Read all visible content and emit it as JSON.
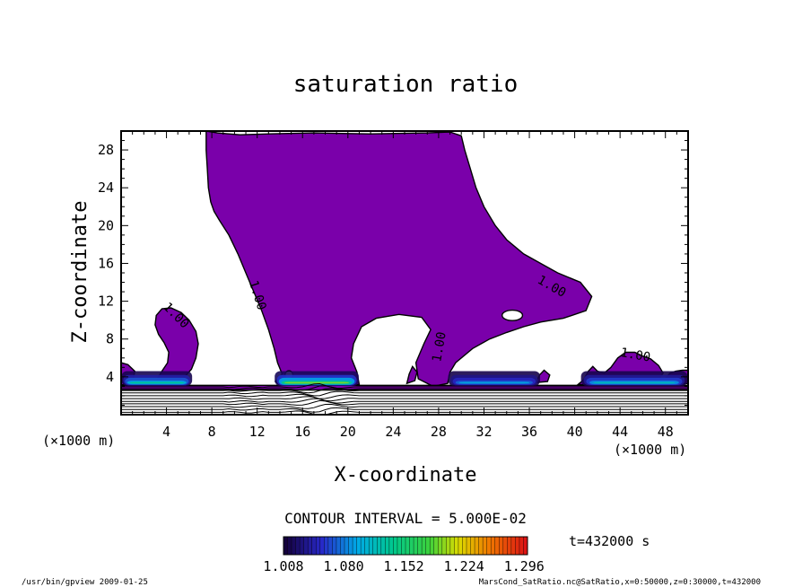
{
  "chart_data": {
    "type": "contour",
    "title": "saturation ratio",
    "xlabel": "X-coordinate",
    "ylabel": "Z-coordinate",
    "x_unit": "(×1000 m)",
    "y_unit": "(×1000 m)",
    "xlim": [
      0,
      50
    ],
    "ylim": [
      0,
      30
    ],
    "x_ticks": [
      4,
      8,
      12,
      16,
      20,
      24,
      28,
      32,
      36,
      40,
      44,
      48
    ],
    "y_ticks": [
      4,
      8,
      12,
      16,
      20,
      24,
      28
    ],
    "contour_label": "1.00",
    "contour_interval": "CONTOUR INTERVAL = 5.000E-02",
    "time_label": "t=432000 s",
    "colorbar": {
      "ticks": [
        "1.008",
        "1.080",
        "1.152",
        "1.224",
        "1.296"
      ],
      "min": 1.008,
      "max": 1.3
    },
    "fill_color": "#7a00aa",
    "footer_left": "/usr/bin/gpview  2009-01-25",
    "footer_right": "MarsCond_SatRatio.nc@SatRatio,x=0:50000,z=0:30000,t=432000",
    "regions": [
      {
        "name": "main-plume",
        "polygon": [
          [
            7.5,
            30
          ],
          [
            8.5,
            29.8
          ],
          [
            10.5,
            29.6
          ],
          [
            13,
            29.7
          ],
          [
            17,
            29.8
          ],
          [
            22,
            29.7
          ],
          [
            27,
            29.8
          ],
          [
            29,
            29.9
          ],
          [
            30,
            29.5
          ],
          [
            30.3,
            28
          ],
          [
            30.8,
            26
          ],
          [
            31.3,
            24
          ],
          [
            32,
            22
          ],
          [
            33,
            20
          ],
          [
            34,
            18.5
          ],
          [
            35.5,
            17
          ],
          [
            37,
            16
          ],
          [
            38.5,
            15
          ],
          [
            40.5,
            14
          ],
          [
            41.5,
            12.5
          ],
          [
            41,
            11
          ],
          [
            39,
            10.2
          ],
          [
            37,
            9.8
          ],
          [
            35.5,
            9.3
          ],
          [
            34,
            8.7
          ],
          [
            32.5,
            8
          ],
          [
            31,
            7
          ],
          [
            29.5,
            5.5
          ],
          [
            29,
            4.5
          ],
          [
            28.8,
            3.3
          ],
          [
            27.5,
            3
          ],
          [
            26.2,
            3.8
          ],
          [
            26,
            5.5
          ],
          [
            26.7,
            7.5
          ],
          [
            27.3,
            9
          ],
          [
            26.5,
            10.3
          ],
          [
            24.5,
            10.6
          ],
          [
            22.5,
            10.2
          ],
          [
            21.2,
            9.3
          ],
          [
            20.5,
            7.5
          ],
          [
            20.3,
            6
          ],
          [
            20.8,
            4.5
          ],
          [
            21,
            3.2
          ],
          [
            17.5,
            3
          ],
          [
            14,
            3.1
          ],
          [
            13.6,
            3.5
          ],
          [
            14.2,
            4.3
          ],
          [
            13.8,
            5.5
          ],
          [
            13.5,
            7
          ],
          [
            13,
            9
          ],
          [
            12.4,
            11
          ],
          [
            11.7,
            13
          ],
          [
            11,
            15
          ],
          [
            10.3,
            17
          ],
          [
            9.5,
            19
          ],
          [
            8.7,
            20.5
          ],
          [
            8.2,
            21.5
          ],
          [
            7.9,
            22.5
          ],
          [
            7.7,
            24
          ],
          [
            7.6,
            26
          ],
          [
            7.5,
            28
          ]
        ]
      },
      {
        "name": "left-blob",
        "polygon": [
          [
            3.3,
            2.9
          ],
          [
            4,
            3.2
          ],
          [
            4.8,
            3.6
          ],
          [
            5.6,
            4
          ],
          [
            6.2,
            4.8
          ],
          [
            6.6,
            6
          ],
          [
            6.8,
            7.5
          ],
          [
            6.6,
            8.8
          ],
          [
            6,
            10
          ],
          [
            5.3,
            10.8
          ],
          [
            4.4,
            11.3
          ],
          [
            3.6,
            11.2
          ],
          [
            3.1,
            10.5
          ],
          [
            3,
            9.5
          ],
          [
            3.3,
            8.5
          ],
          [
            3.8,
            7.6
          ],
          [
            4.2,
            6.6
          ],
          [
            4.1,
            5.5
          ],
          [
            3.6,
            4.6
          ],
          [
            3.2,
            3.8
          ]
        ]
      },
      {
        "name": "left-edge-blob",
        "polygon": [
          [
            0,
            5.5
          ],
          [
            0.6,
            5.3
          ],
          [
            1.2,
            4.6
          ],
          [
            1.1,
            3.9
          ],
          [
            0.5,
            3.3
          ],
          [
            0,
            3.1
          ]
        ]
      },
      {
        "name": "right-blob-1",
        "polygon": [
          [
            40.3,
            3.2
          ],
          [
            40.8,
            3.7
          ],
          [
            41.2,
            4.6
          ],
          [
            41.6,
            5.1
          ],
          [
            42,
            4.6
          ],
          [
            42.6,
            4.4
          ],
          [
            43.2,
            5
          ],
          [
            43.8,
            6
          ],
          [
            44.5,
            6.6
          ],
          [
            45.3,
            6.6
          ],
          [
            46,
            6.2
          ],
          [
            46.7,
            5.9
          ],
          [
            47.4,
            5.2
          ],
          [
            47.8,
            4.4
          ],
          [
            47.3,
            3.6
          ],
          [
            46,
            3.2
          ],
          [
            44,
            3.1
          ],
          [
            42,
            3.1
          ]
        ]
      },
      {
        "name": "right-blob-2",
        "polygon": [
          [
            47.8,
            3.5
          ],
          [
            48.4,
            4.4
          ],
          [
            48.9,
            4.6
          ],
          [
            49.5,
            4.7
          ],
          [
            50,
            4.7
          ],
          [
            50,
            3.3
          ],
          [
            49,
            3.2
          ],
          [
            48.2,
            3.2
          ]
        ]
      },
      {
        "name": "small-blob-mid",
        "polygon": [
          [
            25.2,
            3.3
          ],
          [
            25.4,
            4.3
          ],
          [
            25.7,
            5.1
          ],
          [
            26.1,
            4.5
          ],
          [
            25.9,
            3.6
          ]
        ]
      },
      {
        "name": "small-blob-right",
        "polygon": [
          [
            36.6,
            3.4
          ],
          [
            36.9,
            4.2
          ],
          [
            37.3,
            4.7
          ],
          [
            37.8,
            4.2
          ],
          [
            37.6,
            3.5
          ]
        ]
      },
      {
        "name": "surface-band",
        "polygon": [
          [
            0,
            3.1
          ],
          [
            50,
            3.1
          ],
          [
            50,
            2.6
          ],
          [
            0,
            2.6
          ]
        ]
      }
    ],
    "holes": [
      {
        "name": "hole-ellipse",
        "cx": 34.5,
        "cy": 10.5,
        "rx": 0.9,
        "ry": 0.55
      },
      {
        "name": "hole-small",
        "cx": 14.8,
        "cy": 4.2,
        "rx": 0.35,
        "ry": 0.45
      }
    ],
    "contour_labels": [
      {
        "x": 11.7,
        "y": 12.5,
        "angle": 72
      },
      {
        "x": 4.6,
        "y": 10.2,
        "angle": 45
      },
      {
        "x": 28.4,
        "y": 7.1,
        "angle": -80
      },
      {
        "x": 37.8,
        "y": 13.2,
        "angle": 30
      },
      {
        "x": 45.3,
        "y": 5.9,
        "angle": 10
      }
    ],
    "bands": [
      {
        "x0": 0.0,
        "x1": 6.3,
        "level": 1.14
      },
      {
        "x0": 13.5,
        "x1": 21.0,
        "level": 1.2
      },
      {
        "x0": 28.8,
        "x1": 37.0,
        "level": 1.1
      },
      {
        "x0": 40.5,
        "x1": 50.0,
        "level": 1.12
      }
    ]
  }
}
